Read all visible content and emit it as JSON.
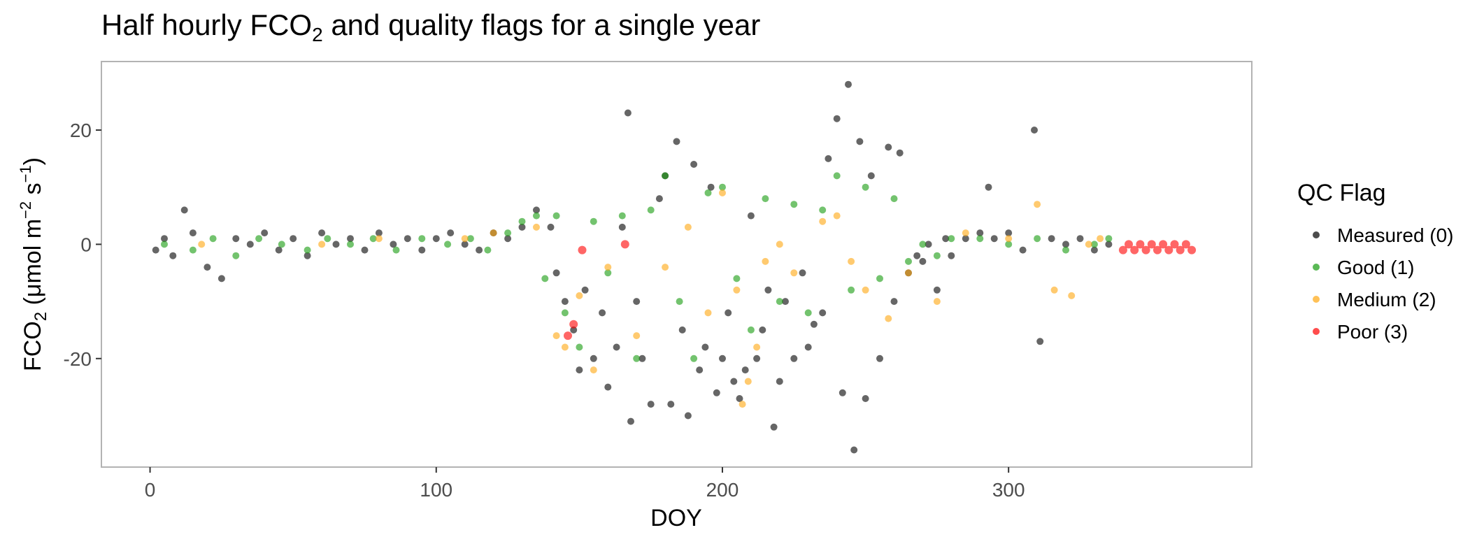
{
  "chart_data": {
    "type": "scatter",
    "title": {
      "before": "Half hourly FCO",
      "sub": "2",
      "after": " and quality flags for a single year"
    },
    "xlabel": "DOY",
    "ylabel": {
      "main": "FCO",
      "sub": "2",
      "unit_open": " (μmol m",
      "exp1": "−2",
      "unit_mid": " s",
      "exp2": "−1",
      "unit_close": ")"
    },
    "xlim": [
      -17,
      385
    ],
    "ylim": [
      -39,
      32
    ],
    "x_ticks": [
      0,
      100,
      200,
      300
    ],
    "y_ticks": [
      -20,
      0,
      20
    ],
    "grid": false,
    "legend": {
      "title": "QC Flag",
      "placement": "right",
      "entries": [
        {
          "label": "Measured (0)",
          "color": "#000000"
        },
        {
          "label": "Good (1)",
          "color": "#159b0e"
        },
        {
          "label": "Medium (2)",
          "color": "#ffa60f"
        },
        {
          "label": "Poor (3)",
          "color": "#ff0000"
        }
      ]
    },
    "series": [
      {
        "name": "Measured (0)",
        "color": "#000000",
        "points": [
          [
            2,
            -1
          ],
          [
            5,
            1
          ],
          [
            8,
            -2
          ],
          [
            12,
            6
          ],
          [
            15,
            2
          ],
          [
            20,
            -4
          ],
          [
            25,
            -6
          ],
          [
            30,
            1
          ],
          [
            35,
            0
          ],
          [
            40,
            2
          ],
          [
            45,
            -1
          ],
          [
            50,
            1
          ],
          [
            55,
            -2
          ],
          [
            60,
            2
          ],
          [
            65,
            0
          ],
          [
            70,
            1
          ],
          [
            75,
            -1
          ],
          [
            80,
            2
          ],
          [
            85,
            0
          ],
          [
            90,
            1
          ],
          [
            95,
            -1
          ],
          [
            100,
            1
          ],
          [
            105,
            2
          ],
          [
            110,
            0
          ],
          [
            115,
            -1
          ],
          [
            120,
            2
          ],
          [
            125,
            1
          ],
          [
            130,
            3
          ],
          [
            135,
            6
          ],
          [
            140,
            3
          ],
          [
            142,
            -5
          ],
          [
            145,
            -10
          ],
          [
            148,
            -15
          ],
          [
            150,
            -22
          ],
          [
            152,
            -8
          ],
          [
            155,
            -20
          ],
          [
            158,
            -12
          ],
          [
            160,
            -25
          ],
          [
            163,
            -18
          ],
          [
            165,
            3
          ],
          [
            167,
            23
          ],
          [
            168,
            -31
          ],
          [
            170,
            -10
          ],
          [
            172,
            -20
          ],
          [
            175,
            -28
          ],
          [
            178,
            8
          ],
          [
            180,
            12
          ],
          [
            182,
            -28
          ],
          [
            184,
            18
          ],
          [
            186,
            -15
          ],
          [
            188,
            -30
          ],
          [
            190,
            14
          ],
          [
            192,
            -22
          ],
          [
            194,
            -18
          ],
          [
            196,
            10
          ],
          [
            198,
            -26
          ],
          [
            200,
            -20
          ],
          [
            202,
            -12
          ],
          [
            204,
            -24
          ],
          [
            206,
            -27
          ],
          [
            208,
            -22
          ],
          [
            210,
            5
          ],
          [
            212,
            -20
          ],
          [
            214,
            -15
          ],
          [
            216,
            -8
          ],
          [
            218,
            -32
          ],
          [
            220,
            -24
          ],
          [
            222,
            -10
          ],
          [
            225,
            -20
          ],
          [
            228,
            -5
          ],
          [
            230,
            -18
          ],
          [
            232,
            -14
          ],
          [
            235,
            -12
          ],
          [
            237,
            15
          ],
          [
            240,
            22
          ],
          [
            242,
            -26
          ],
          [
            244,
            28
          ],
          [
            246,
            -36
          ],
          [
            248,
            18
          ],
          [
            250,
            -27
          ],
          [
            252,
            12
          ],
          [
            255,
            -20
          ],
          [
            258,
            17
          ],
          [
            260,
            -10
          ],
          [
            262,
            16
          ],
          [
            265,
            -5
          ],
          [
            268,
            -2
          ],
          [
            270,
            -3
          ],
          [
            272,
            0
          ],
          [
            275,
            -8
          ],
          [
            278,
            1
          ],
          [
            280,
            -2
          ],
          [
            285,
            1
          ],
          [
            290,
            2
          ],
          [
            293,
            10
          ],
          [
            295,
            1
          ],
          [
            300,
            2
          ],
          [
            305,
            -1
          ],
          [
            309,
            20
          ],
          [
            311,
            -17
          ],
          [
            315,
            1
          ],
          [
            320,
            0
          ],
          [
            325,
            1
          ],
          [
            330,
            -1
          ],
          [
            335,
            0
          ]
        ]
      },
      {
        "name": "Good (1)",
        "color": "#159b0e",
        "points": [
          [
            5,
            0
          ],
          [
            15,
            -1
          ],
          [
            22,
            1
          ],
          [
            30,
            -2
          ],
          [
            38,
            1
          ],
          [
            46,
            0
          ],
          [
            55,
            -1
          ],
          [
            62,
            1
          ],
          [
            70,
            0
          ],
          [
            78,
            1
          ],
          [
            86,
            -1
          ],
          [
            95,
            1
          ],
          [
            104,
            0
          ],
          [
            112,
            1
          ],
          [
            118,
            -1
          ],
          [
            125,
            2
          ],
          [
            130,
            4
          ],
          [
            135,
            5
          ],
          [
            138,
            -6
          ],
          [
            142,
            5
          ],
          [
            145,
            -12
          ],
          [
            150,
            -18
          ],
          [
            155,
            4
          ],
          [
            160,
            -5
          ],
          [
            165,
            5
          ],
          [
            170,
            -20
          ],
          [
            175,
            6
          ],
          [
            180,
            12
          ],
          [
            185,
            -10
          ],
          [
            190,
            -20
          ],
          [
            195,
            9
          ],
          [
            200,
            10
          ],
          [
            205,
            -6
          ],
          [
            210,
            -15
          ],
          [
            215,
            8
          ],
          [
            220,
            -10
          ],
          [
            225,
            7
          ],
          [
            230,
            -12
          ],
          [
            235,
            6
          ],
          [
            240,
            12
          ],
          [
            245,
            -8
          ],
          [
            250,
            10
          ],
          [
            255,
            -6
          ],
          [
            260,
            8
          ],
          [
            265,
            -3
          ],
          [
            270,
            0
          ],
          [
            275,
            -2
          ],
          [
            280,
            1
          ],
          [
            290,
            1
          ],
          [
            300,
            0
          ],
          [
            310,
            1
          ],
          [
            320,
            -1
          ],
          [
            330,
            0
          ],
          [
            335,
            1
          ]
        ]
      },
      {
        "name": "Medium (2)",
        "color": "#ffa60f",
        "points": [
          [
            18,
            0
          ],
          [
            60,
            0
          ],
          [
            80,
            1
          ],
          [
            110,
            1
          ],
          [
            120,
            2
          ],
          [
            135,
            3
          ],
          [
            142,
            -16
          ],
          [
            145,
            -18
          ],
          [
            150,
            -9
          ],
          [
            155,
            -22
          ],
          [
            160,
            -4
          ],
          [
            170,
            -16
          ],
          [
            180,
            -4
          ],
          [
            188,
            3
          ],
          [
            195,
            -12
          ],
          [
            200,
            9
          ],
          [
            205,
            -8
          ],
          [
            207,
            -28
          ],
          [
            209,
            -24
          ],
          [
            212,
            -18
          ],
          [
            215,
            -3
          ],
          [
            220,
            0
          ],
          [
            225,
            -5
          ],
          [
            235,
            4
          ],
          [
            240,
            5
          ],
          [
            245,
            -3
          ],
          [
            250,
            -8
          ],
          [
            258,
            -13
          ],
          [
            265,
            -5
          ],
          [
            275,
            -10
          ],
          [
            285,
            2
          ],
          [
            300,
            1
          ],
          [
            310,
            7
          ],
          [
            316,
            -8
          ],
          [
            322,
            -9
          ],
          [
            328,
            0
          ],
          [
            332,
            1
          ]
        ]
      },
      {
        "name": "Poor (3)",
        "color": "#ff0000",
        "points": [
          [
            146,
            -16
          ],
          [
            148,
            -14
          ],
          [
            151,
            -1
          ],
          [
            166,
            0
          ],
          [
            340,
            -1
          ],
          [
            342,
            0
          ],
          [
            344,
            -1
          ],
          [
            346,
            0
          ],
          [
            348,
            -1
          ],
          [
            350,
            0
          ],
          [
            352,
            -1
          ],
          [
            354,
            0
          ],
          [
            356,
            -1
          ],
          [
            358,
            0
          ],
          [
            360,
            -1
          ],
          [
            362,
            0
          ],
          [
            364,
            -1
          ]
        ]
      }
    ]
  }
}
